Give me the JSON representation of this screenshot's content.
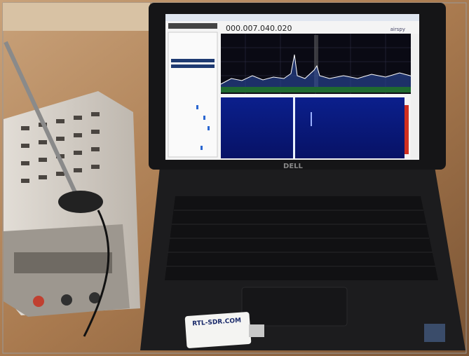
{
  "screen": {
    "frequency": "000.007.040.020",
    "logo": "airspy"
  },
  "laptop": {
    "brand": "DELL"
  },
  "dongle": {
    "label": "RTL-SDR.COM"
  }
}
